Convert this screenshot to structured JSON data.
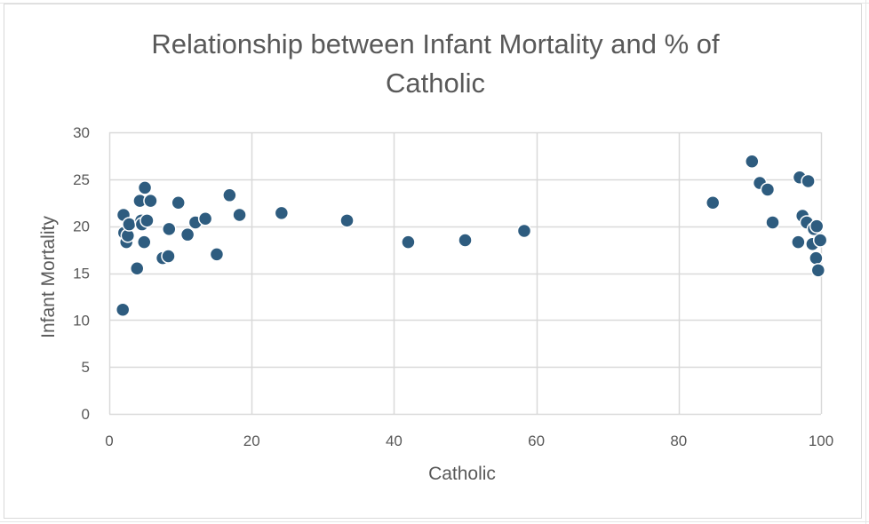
{
  "chart_data": {
    "type": "scatter",
    "title": "Relationship between Infant Mortality and % of Catholic",
    "title_lines": [
      "Relationship between Infant Mortality and % of",
      "Catholic"
    ],
    "xlabel": "Catholic",
    "ylabel": "Infant Mortality",
    "xlim": [
      0,
      100
    ],
    "ylim": [
      0,
      30
    ],
    "xticks": [
      0,
      20,
      40,
      60,
      80,
      100
    ],
    "yticks": [
      0,
      5,
      10,
      15,
      20,
      25,
      30
    ],
    "grid": true,
    "legend": "none",
    "marker_color": "#2e5c7f",
    "marker_edge_color": "#ffffff",
    "series": [
      {
        "points": [
          [
            1.9,
            11.1
          ],
          [
            2.0,
            21.2
          ],
          [
            2.1,
            19.3
          ],
          [
            2.4,
            18.3
          ],
          [
            2.6,
            19.0
          ],
          [
            2.8,
            20.2
          ],
          [
            3.9,
            15.5
          ],
          [
            4.3,
            22.7
          ],
          [
            4.5,
            20.6
          ],
          [
            4.6,
            20.2
          ],
          [
            4.9,
            18.3
          ],
          [
            5.0,
            24.1
          ],
          [
            5.3,
            20.6
          ],
          [
            5.8,
            22.7
          ],
          [
            7.5,
            16.6
          ],
          [
            8.3,
            16.8
          ],
          [
            8.4,
            19.7
          ],
          [
            9.7,
            22.5
          ],
          [
            11.0,
            19.1
          ],
          [
            12.1,
            20.4
          ],
          [
            13.5,
            20.8
          ],
          [
            15.1,
            17.0
          ],
          [
            16.9,
            23.3
          ],
          [
            18.3,
            21.2
          ],
          [
            24.2,
            21.4
          ],
          [
            33.4,
            20.6
          ],
          [
            42.0,
            18.3
          ],
          [
            50.0,
            18.5
          ],
          [
            58.3,
            19.5
          ],
          [
            84.8,
            22.5
          ],
          [
            90.3,
            26.9
          ],
          [
            91.4,
            24.6
          ],
          [
            92.5,
            23.9
          ],
          [
            93.2,
            20.4
          ],
          [
            96.8,
            18.3
          ],
          [
            97.0,
            25.2
          ],
          [
            97.4,
            21.1
          ],
          [
            98.0,
            20.4
          ],
          [
            98.2,
            24.8
          ],
          [
            98.8,
            18.1
          ],
          [
            99.0,
            19.7
          ],
          [
            99.3,
            16.6
          ],
          [
            99.4,
            20.0
          ],
          [
            99.6,
            15.3
          ],
          [
            99.9,
            18.5
          ]
        ]
      }
    ]
  }
}
